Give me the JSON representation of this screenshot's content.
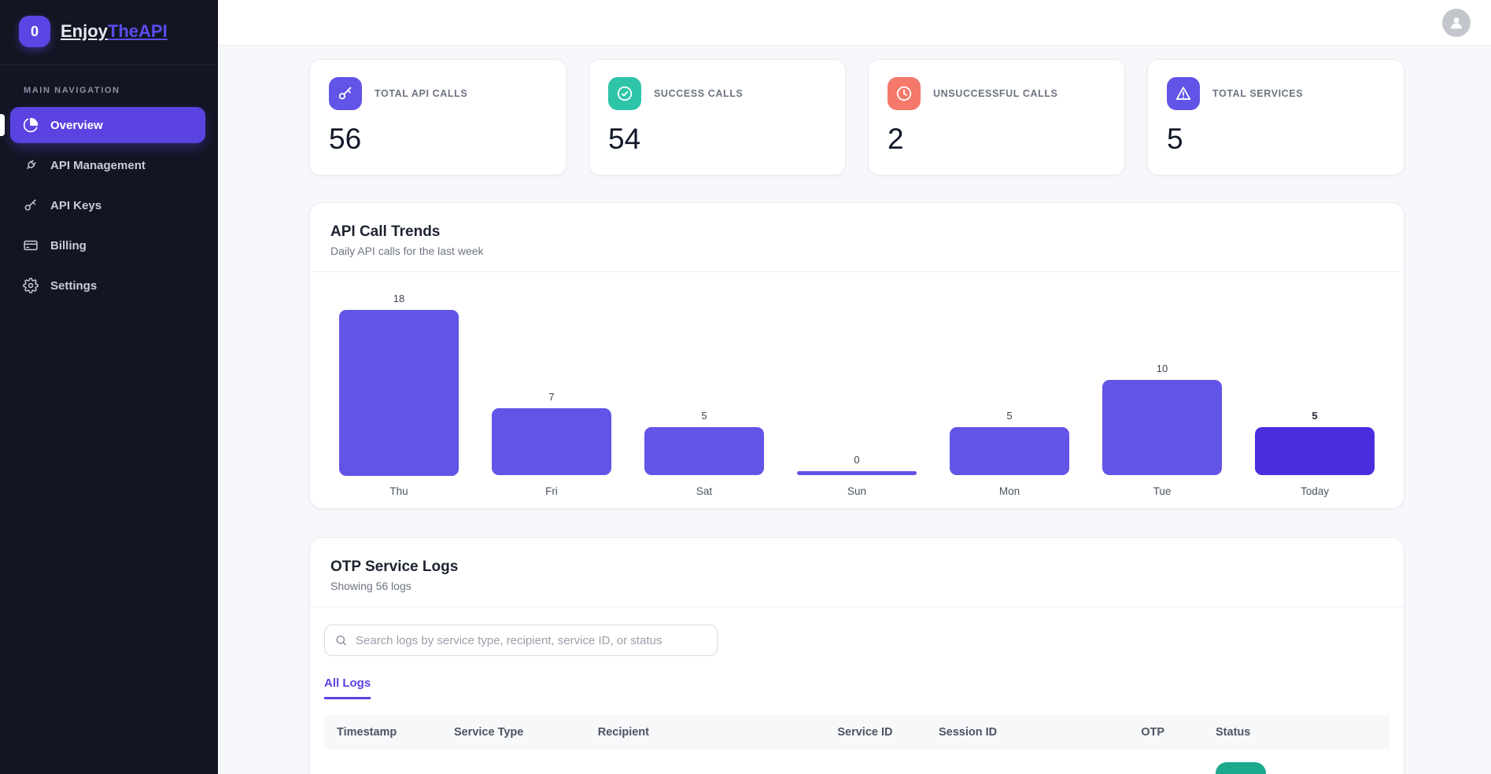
{
  "brand": {
    "badge": "0",
    "name_regular": "Enjoy",
    "name_accent": "TheAPI"
  },
  "sidebar": {
    "section_label": "MAIN NAVIGATION",
    "items": [
      {
        "label": "Overview",
        "icon": "pie-chart",
        "active": true
      },
      {
        "label": "API Management",
        "icon": "plug",
        "active": false
      },
      {
        "label": "API Keys",
        "icon": "key",
        "active": false
      },
      {
        "label": "Billing",
        "icon": "credit-card",
        "active": false
      },
      {
        "label": "Settings",
        "icon": "gear",
        "active": false
      }
    ]
  },
  "stats": [
    {
      "label": "TOTAL API CALLS",
      "value": "56",
      "icon": "key-icon",
      "color": "#6254e6"
    },
    {
      "label": "SUCCESS CALLS",
      "value": "54",
      "icon": "check-circle-icon",
      "color": "#2ec4a7"
    },
    {
      "label": "UNSUCCESSFUL CALLS",
      "value": "2",
      "icon": "clock-icon",
      "color": "#f4796b"
    },
    {
      "label": "TOTAL SERVICES",
      "value": "5",
      "icon": "alert-triangle-icon",
      "color": "#6254e6"
    }
  ],
  "chart": {
    "title": "API Call Trends",
    "subtitle": "Daily API calls for the last week"
  },
  "chart_data": {
    "type": "bar",
    "categories": [
      "Thu",
      "Fri",
      "Sat",
      "Sun",
      "Mon",
      "Tue",
      "Today"
    ],
    "values": [
      18,
      7,
      5,
      0,
      5,
      10,
      5
    ],
    "title": "API Call Trends",
    "xlabel": "",
    "ylabel": "",
    "ylim": [
      0,
      18
    ],
    "grid": false,
    "legend": false,
    "bar_color": "#6254e6",
    "highlight_index": 6,
    "highlight_color": "#4b2de0"
  },
  "logs": {
    "title": "OTP Service Logs",
    "subtitle": "Showing 56 logs",
    "search_placeholder": "Search logs by service type, recipient, service ID, or status",
    "tabs": [
      {
        "label": "All Logs",
        "active": true
      }
    ],
    "columns": [
      "Timestamp",
      "Service Type",
      "Recipient",
      "Service ID",
      "Session ID",
      "OTP",
      "Status"
    ],
    "first_row_badge_color": "#1daa8c"
  },
  "theme": {
    "accent": "#5a43e0",
    "sidebar_bg": "#131622",
    "content_bg": "#f7f8fc",
    "success": "#2ec4a7",
    "danger": "#f4796b"
  }
}
